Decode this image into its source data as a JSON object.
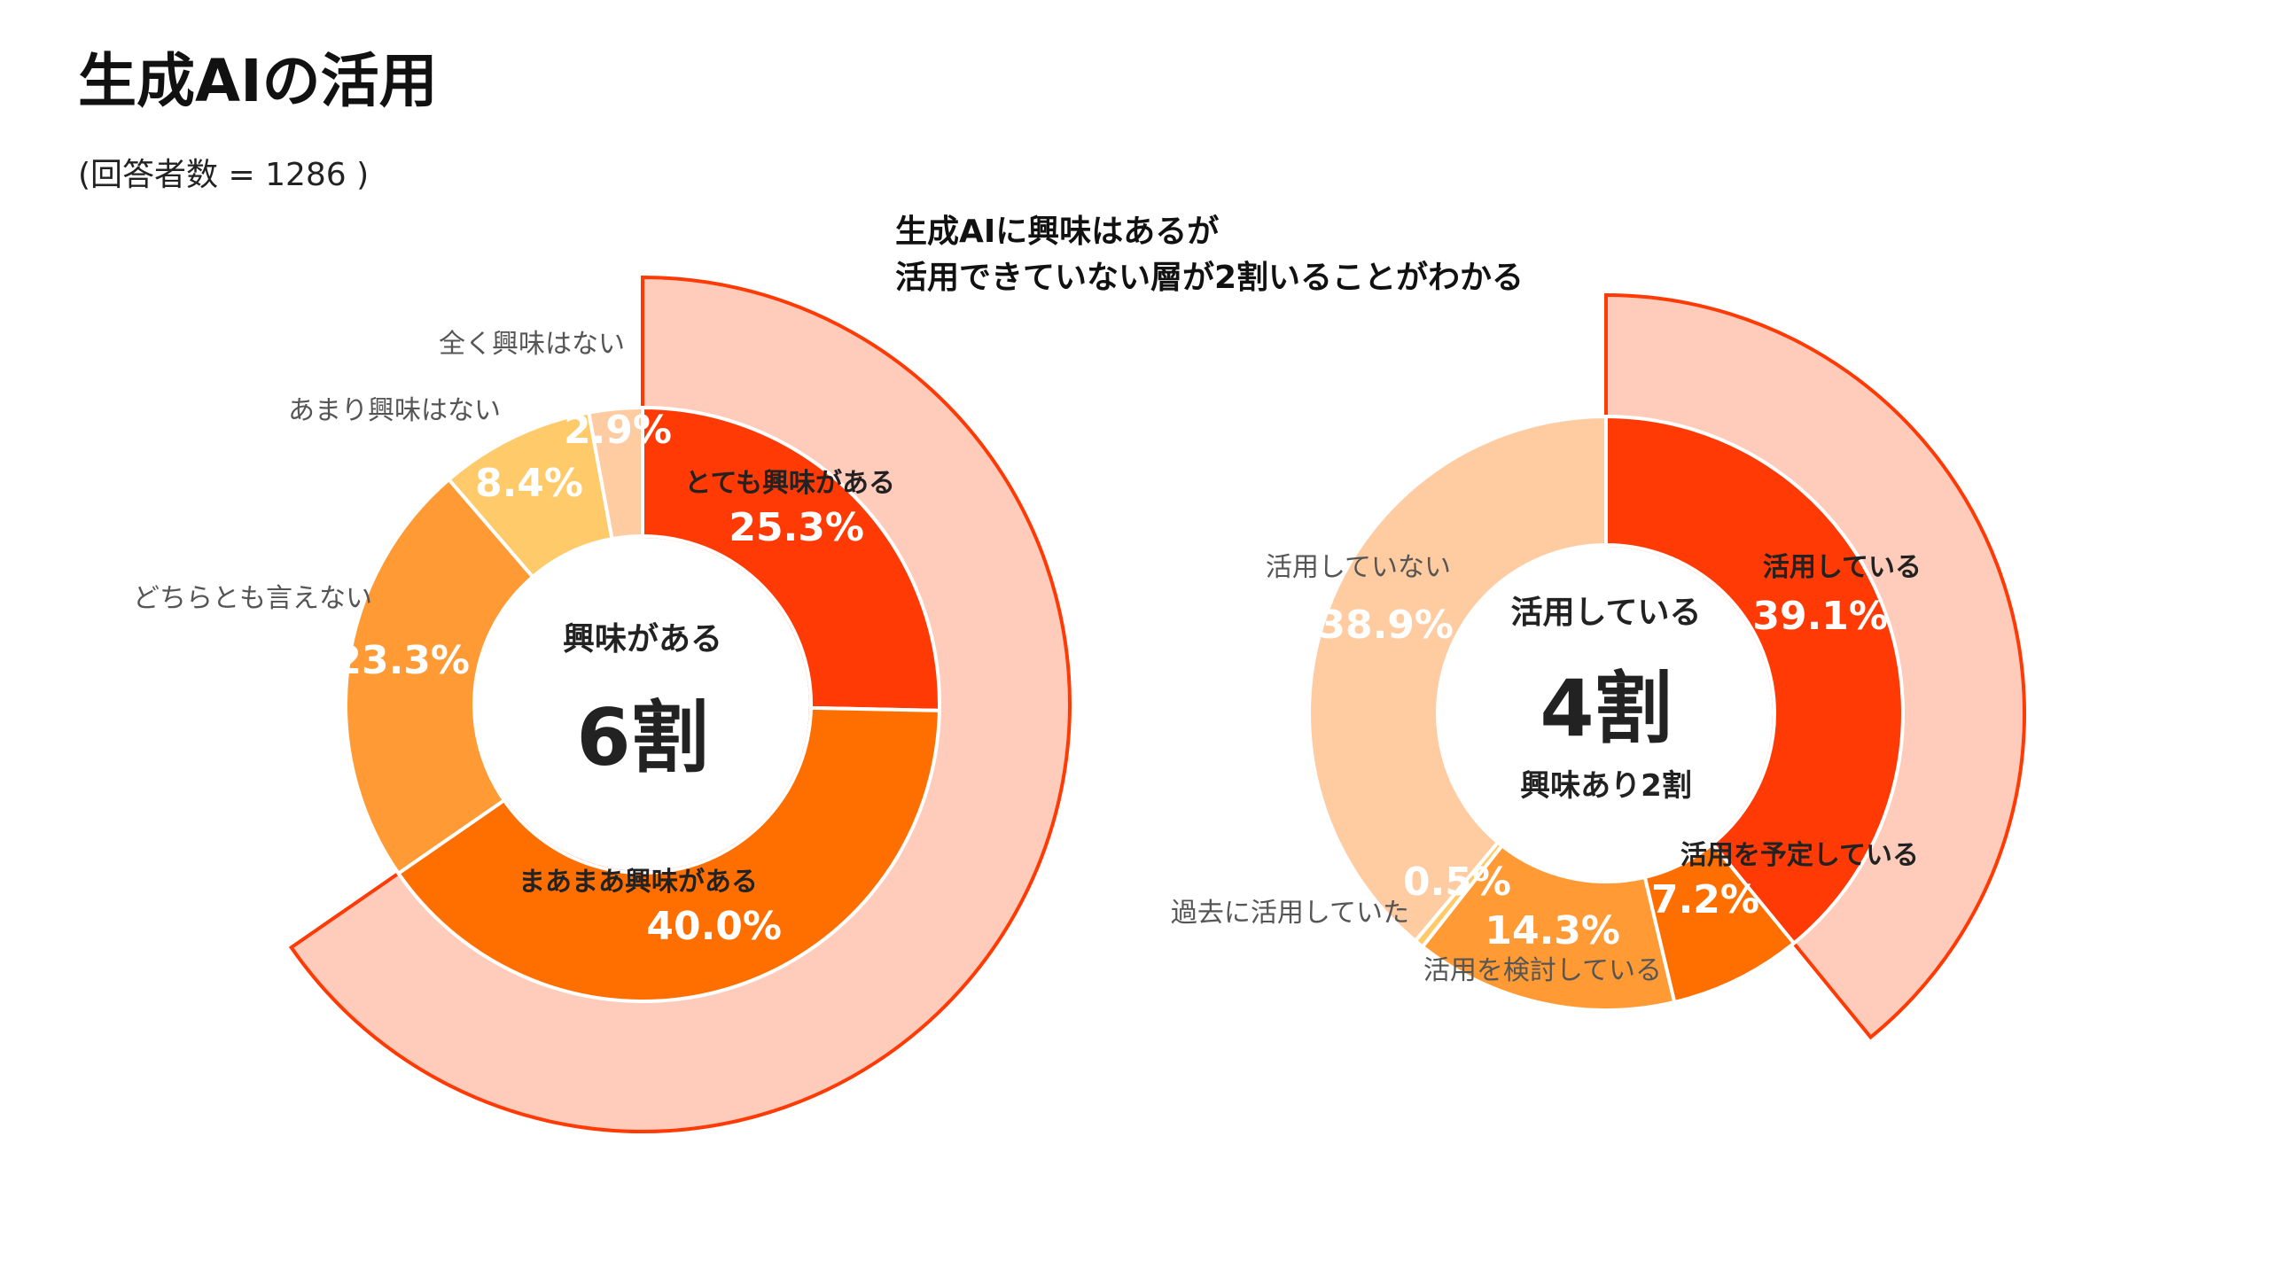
{
  "title": "生成AIの活用",
  "respondents": "(回答者数 = 1286 )",
  "headline": {
    "line1": "生成AIに興味はあるが",
    "line2": "活用できていない層が2割いることがわかる"
  },
  "chart_data": [
    {
      "type": "donut",
      "title": "興味",
      "center_label": "興味がある",
      "center_value": "6割",
      "unit": "%",
      "categories": [
        "とても興味がある",
        "まあまあ興味がある",
        "どちらとも言えない",
        "あまり興味はない",
        "全く興味はない"
      ],
      "values": [
        25.3,
        40.0,
        23.3,
        8.4,
        2.9
      ],
      "value_labels": [
        "25.3%",
        "40.0%",
        "23.3%",
        "8.4%",
        "2.9%"
      ],
      "colors": [
        "#FF3A05",
        "#FF6F00",
        "#FF9A35",
        "#FFCB6A",
        "#FFCBA1"
      ],
      "highlight": {
        "group": "興味がある",
        "categories": [
          "とても興味がある",
          "まあまあ興味がある"
        ],
        "value": 65.3,
        "fill": "#FFCCBC",
        "stroke": "#FF3A05"
      }
    },
    {
      "type": "donut",
      "title": "活用",
      "center_label": "活用している",
      "center_value": "4割",
      "center_note": "興味あり2割",
      "unit": "%",
      "categories": [
        "活用している",
        "活用を予定している",
        "活用を検討している",
        "過去に活用していた",
        "活用していない"
      ],
      "values": [
        39.1,
        7.2,
        14.3,
        0.5,
        38.9
      ],
      "value_labels": [
        "39.1%",
        "7.2%",
        "14.3%",
        "0.5%",
        "38.9%"
      ],
      "colors": [
        "#FF3A05",
        "#FF6F00",
        "#FF9A35",
        "#FFCB6A",
        "#FFCBA1"
      ],
      "highlight": {
        "group": "活用している",
        "categories": [
          "活用している"
        ],
        "value": 39.1,
        "fill": "#FFCCBC",
        "stroke": "#FF3A05"
      }
    }
  ]
}
